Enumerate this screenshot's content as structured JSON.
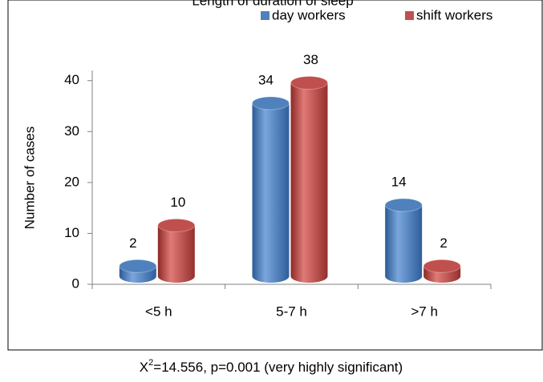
{
  "chart_data": {
    "type": "bar",
    "title": "Length of duration of sleep",
    "y_label": "Number of  cases",
    "categories": [
      "<5 h",
      "5-7 h",
      ">7 h"
    ],
    "series": [
      {
        "name": "day workers",
        "color": "#4f81bd",
        "values": [
          2,
          34,
          14
        ]
      },
      {
        "name": "shift workers",
        "color": "#c0504d",
        "values": [
          10,
          38,
          2
        ]
      }
    ],
    "ylim": [
      0,
      42
    ],
    "yticks": [
      0,
      10,
      20,
      30,
      40
    ],
    "legend": "top-right",
    "annotation": {
      "symbol": "X",
      "exponent": "2",
      "text": "=14.556, p=0.001 (very highly significant)"
    }
  }
}
